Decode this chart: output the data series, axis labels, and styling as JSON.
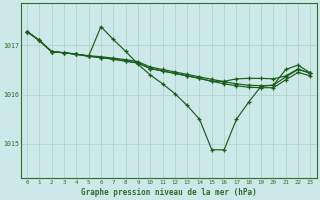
{
  "xlabel": "Graphe pression niveau de la mer (hPa)",
  "xlim": [
    -0.5,
    23.5
  ],
  "ylim": [
    1014.3,
    1017.85
  ],
  "yticks": [
    1015,
    1016,
    1017
  ],
  "xticks": [
    0,
    1,
    2,
    3,
    4,
    5,
    6,
    7,
    8,
    9,
    10,
    11,
    12,
    13,
    14,
    15,
    16,
    17,
    18,
    19,
    20,
    21,
    22,
    23
  ],
  "bg_color": "#cce8e8",
  "grid_color": "#b0d4cc",
  "line_color": "#1a5c1a",
  "axis_color": "#2d6e2d",
  "line1_y": [
    1017.28,
    1017.1,
    1016.87,
    1016.85,
    1016.82,
    1016.79,
    1016.77,
    1016.74,
    1016.71,
    1016.67,
    1016.56,
    1016.51,
    1016.46,
    1016.41,
    1016.36,
    1016.31,
    1016.26,
    1016.22,
    1016.19,
    1016.18,
    1016.19,
    1016.36,
    1016.51,
    1016.44
  ],
  "line2_y": [
    1017.28,
    1017.1,
    1016.87,
    1016.85,
    1016.82,
    1016.78,
    1017.38,
    1017.12,
    1016.88,
    1016.62,
    1016.4,
    1016.22,
    1016.02,
    1015.78,
    1015.5,
    1014.88,
    1014.88,
    1015.5,
    1015.85,
    1016.17,
    1016.19,
    1016.51,
    1016.6,
    1016.44
  ],
  "line3_y": [
    1017.28,
    1017.1,
    1016.87,
    1016.85,
    1016.82,
    1016.78,
    1016.75,
    1016.72,
    1016.68,
    1016.64,
    1016.53,
    1016.48,
    1016.43,
    1016.38,
    1016.33,
    1016.27,
    1016.22,
    1016.18,
    1016.15,
    1016.14,
    1016.14,
    1016.3,
    1016.45,
    1016.38
  ],
  "line4_y": [
    1017.28,
    1017.1,
    1016.87,
    1016.85,
    1016.82,
    1016.78,
    1016.75,
    1016.72,
    1016.68,
    1016.64,
    1016.53,
    1016.48,
    1016.43,
    1016.38,
    1016.33,
    1016.27,
    1016.27,
    1016.32,
    1016.33,
    1016.33,
    1016.32,
    1016.38,
    1016.52,
    1016.43
  ]
}
